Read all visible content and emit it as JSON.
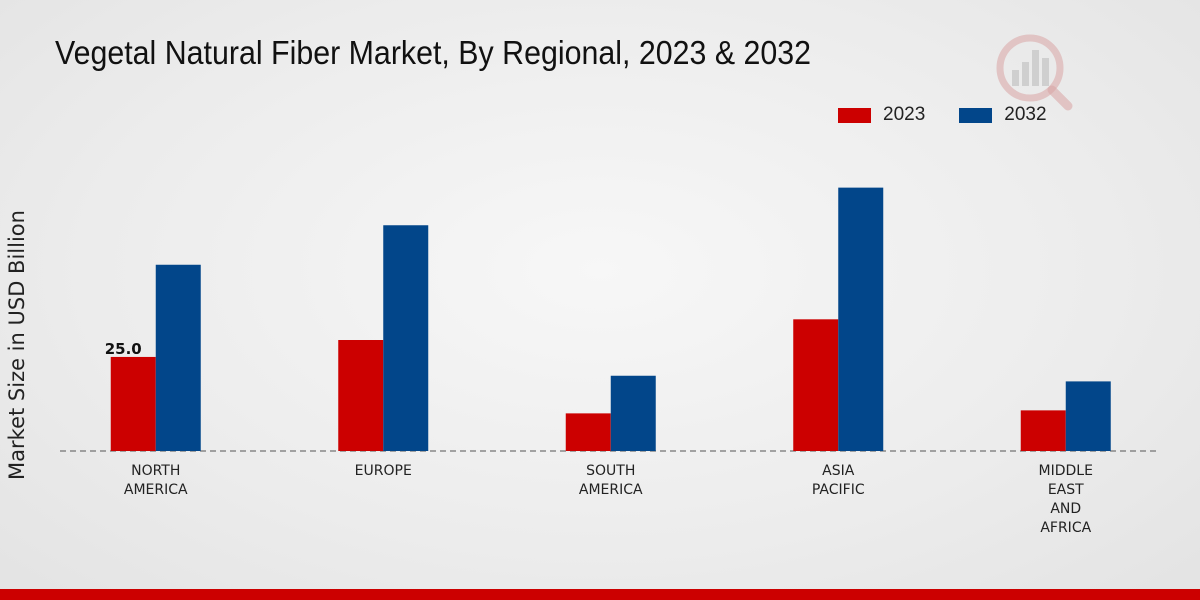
{
  "chart_data": {
    "type": "bar",
    "title": "Vegetal Natural Fiber Market, By Regional, 2023 & 2032",
    "xlabel": "",
    "ylabel": "Market Size in USD Billion",
    "categories": [
      "NORTH\nAMERICA",
      "EUROPE",
      "SOUTH\nAMERICA",
      "ASIA\nPACIFIC",
      "MIDDLE\nEAST\nAND\nAFRICA"
    ],
    "series": [
      {
        "name": "2023",
        "color": "#cc0000",
        "values": [
          25.0,
          29.5,
          10.0,
          35.0,
          10.8
        ]
      },
      {
        "name": "2032",
        "color": "#02468a",
        "values": [
          49.5,
          60.0,
          20.0,
          70.0,
          18.5
        ]
      }
    ],
    "data_labels": [
      {
        "series": 0,
        "index": 0,
        "text": "25.0"
      }
    ],
    "ylim": [
      0,
      80
    ],
    "legend_position": "top-right",
    "grid": false
  },
  "logo_icon": "watermark-chart-logo-icon"
}
